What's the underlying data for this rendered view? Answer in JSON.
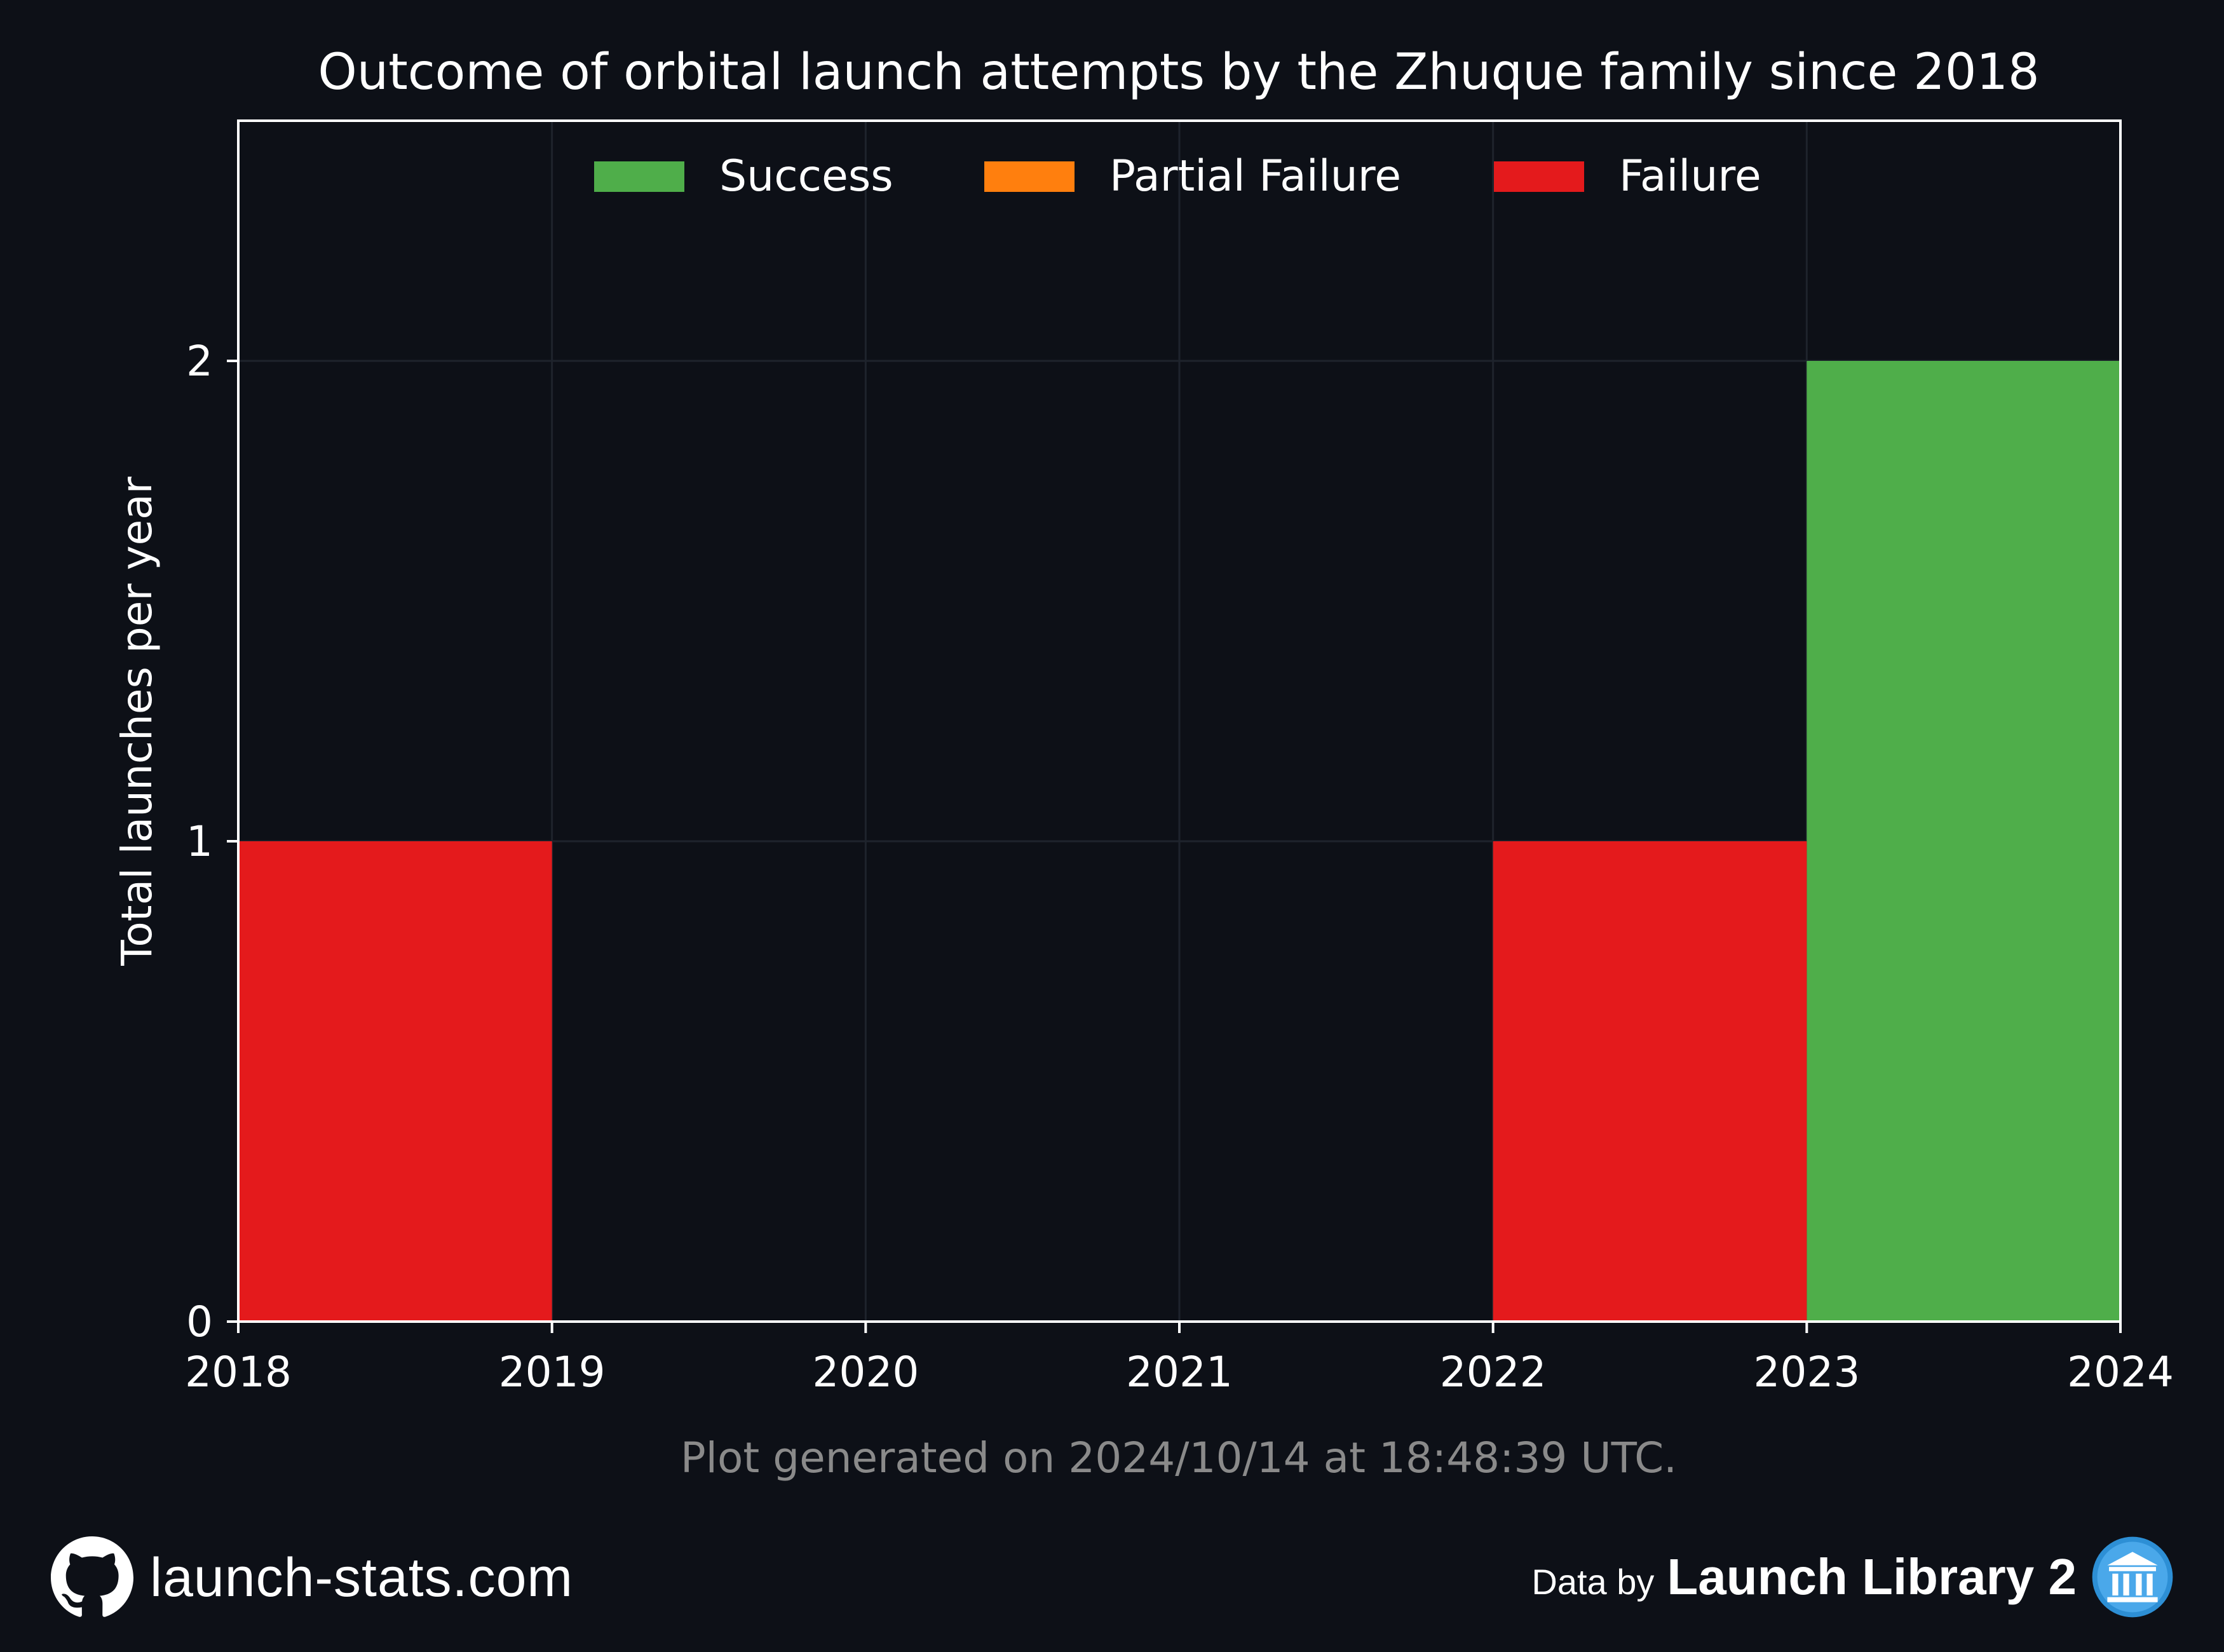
{
  "chart_data": {
    "type": "bar",
    "title": "Outcome of orbital launch attempts by the Zhuque family since 2018",
    "xlabel": "",
    "ylabel": "Total launches per year",
    "x_ticks": [
      "2018",
      "2019",
      "2020",
      "2021",
      "2022",
      "2023",
      "2024"
    ],
    "y_ticks": [
      "0",
      "1",
      "2"
    ],
    "xlim": [
      2018,
      2024
    ],
    "ylim": [
      0,
      2.5
    ],
    "stacked": true,
    "grid": true,
    "legend_position": "top-center",
    "categories": [
      "2018",
      "2019",
      "2020",
      "2021",
      "2022",
      "2023"
    ],
    "series": [
      {
        "name": "Success",
        "color": "#4fae4a",
        "values": [
          0,
          0,
          0,
          0,
          0,
          2
        ]
      },
      {
        "name": "Partial Failure",
        "color": "#ff7f0e",
        "values": [
          0,
          0,
          0,
          0,
          0,
          0
        ]
      },
      {
        "name": "Failure",
        "color": "#e41a1c",
        "values": [
          1,
          0,
          0,
          0,
          1,
          0
        ]
      }
    ]
  },
  "footnote": "Plot generated on 2024/10/14 at 18:48:39 UTC.",
  "footer": {
    "site": "launch-stats.com",
    "site_icon": "github-icon",
    "data_by": "Data by",
    "source": "Launch Library 2",
    "source_icon": "launch-library-icon"
  },
  "colors": {
    "background": "#0d1017",
    "axis": "#ffffff",
    "grid": "#1e232c",
    "footnote": "#8a8a8a"
  }
}
